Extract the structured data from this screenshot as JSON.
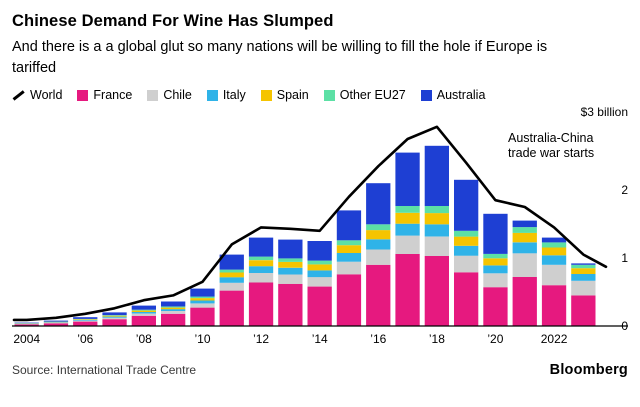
{
  "header": {
    "title": "Chinese Demand For Wine Has Slumped",
    "subtitle": "And there is a a global glut so many nations will be willing to fill the hole if Europe is tariffed"
  },
  "legend": [
    {
      "label": "World",
      "color": "#000000",
      "type": "line"
    },
    {
      "label": "France",
      "color": "#e6197f",
      "type": "square"
    },
    {
      "label": "Chile",
      "color": "#cfcfcf",
      "type": "square"
    },
    {
      "label": "Italy",
      "color": "#2fb3e8",
      "type": "square"
    },
    {
      "label": "Spain",
      "color": "#f5c400",
      "type": "square"
    },
    {
      "label": "Other EU27",
      "color": "#5ce0a5",
      "type": "square"
    },
    {
      "label": "Australia",
      "color": "#1e3fd3",
      "type": "square"
    }
  ],
  "chart_data": {
    "type": "bar",
    "stacked": true,
    "units": "$ billion",
    "x": [
      2004,
      2005,
      2006,
      2007,
      2008,
      2009,
      2010,
      2011,
      2012,
      2013,
      2014,
      2015,
      2016,
      2017,
      2018,
      2019,
      2020,
      2021,
      2022,
      2023
    ],
    "series": [
      {
        "name": "France",
        "color": "#e6197f",
        "values": [
          0.025,
          0.04,
          0.065,
          0.1,
          0.15,
          0.18,
          0.27,
          0.52,
          0.64,
          0.62,
          0.58,
          0.76,
          0.9,
          1.06,
          1.03,
          0.79,
          0.57,
          0.72,
          0.6,
          0.45
        ]
      },
      {
        "name": "Chile",
        "color": "#cfcfcf",
        "values": [
          0.006,
          0.009,
          0.014,
          0.022,
          0.033,
          0.04,
          0.062,
          0.115,
          0.14,
          0.138,
          0.14,
          0.185,
          0.225,
          0.27,
          0.285,
          0.245,
          0.205,
          0.35,
          0.3,
          0.215
        ]
      },
      {
        "name": "Italy",
        "color": "#2fb3e8",
        "values": [
          0.005,
          0.007,
          0.011,
          0.016,
          0.024,
          0.028,
          0.043,
          0.082,
          0.1,
          0.098,
          0.098,
          0.128,
          0.15,
          0.175,
          0.18,
          0.145,
          0.115,
          0.16,
          0.14,
          0.1
        ]
      },
      {
        "name": "Spain",
        "color": "#f5c400",
        "values": [
          0.004,
          0.006,
          0.009,
          0.013,
          0.02,
          0.023,
          0.036,
          0.07,
          0.088,
          0.086,
          0.088,
          0.115,
          0.135,
          0.16,
          0.165,
          0.135,
          0.105,
          0.14,
          0.115,
          0.085
        ]
      },
      {
        "name": "Other EU27",
        "color": "#5ce0a5",
        "values": [
          0.003,
          0.004,
          0.006,
          0.009,
          0.013,
          0.015,
          0.022,
          0.043,
          0.052,
          0.052,
          0.056,
          0.072,
          0.085,
          0.1,
          0.105,
          0.085,
          0.065,
          0.085,
          0.075,
          0.05
        ]
      },
      {
        "name": "Australia",
        "color": "#1e3fd3",
        "values": [
          0.007,
          0.014,
          0.025,
          0.04,
          0.06,
          0.074,
          0.117,
          0.22,
          0.28,
          0.276,
          0.288,
          0.44,
          0.605,
          0.785,
          0.885,
          0.75,
          0.59,
          0.095,
          0.07,
          0.02
        ]
      }
    ],
    "line_series": {
      "name": "World",
      "color": "#000000",
      "values": [
        0.09,
        0.12,
        0.18,
        0.26,
        0.38,
        0.45,
        0.65,
        1.2,
        1.45,
        1.43,
        1.4,
        1.9,
        2.35,
        2.75,
        2.93,
        2.4,
        1.85,
        1.75,
        1.45,
        1.05
      ]
    },
    "y_axis": {
      "top_label": "$3 billion",
      "ticks": [
        0,
        1,
        2
      ],
      "max": 3
    },
    "x_tick_labels": [
      "2004",
      "’06",
      "’08",
      "’10",
      "’12",
      "’14",
      "’16",
      "’18",
      "’20",
      "2022"
    ],
    "annotation": [
      "Australia-China",
      "trade war starts"
    ],
    "legend_position": "top",
    "grid": false
  },
  "footer": {
    "source": "Source: International Trade Centre",
    "brand": "Bloomberg"
  }
}
